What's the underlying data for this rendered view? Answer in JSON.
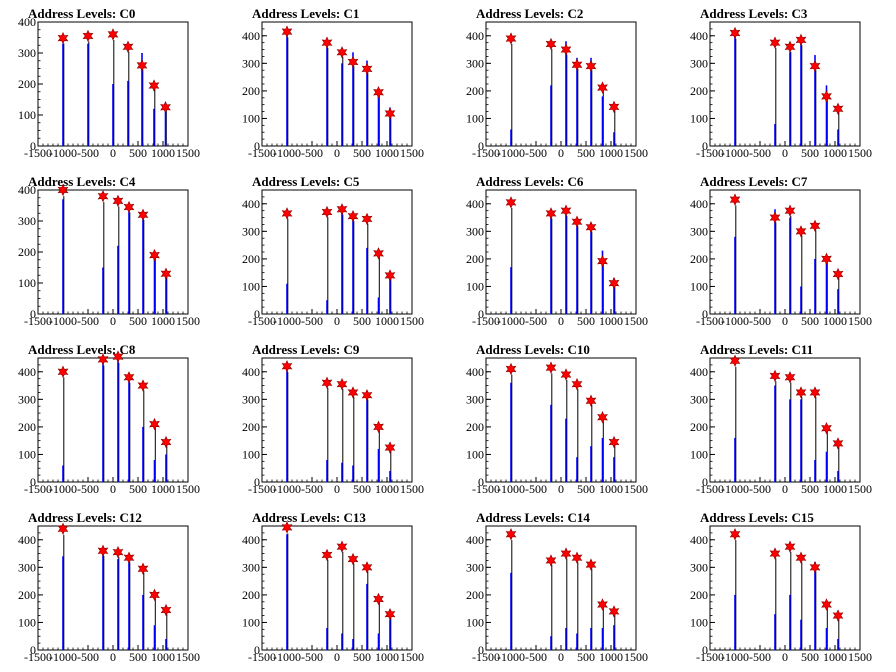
{
  "figure": {
    "background": "#ffffff"
  },
  "style": {
    "hist_color": "#0000ff",
    "stem_color": "#000000",
    "marker_fill": "#ff0000",
    "marker_stroke": "#8b0000",
    "axis_color": "#000000"
  },
  "chart_data": [
    {
      "type": "bar",
      "title": "Address Levels: C0",
      "xlim": [
        -1500,
        1500
      ],
      "ylim": [
        0,
        400
      ],
      "xticks": [
        "-1500",
        "-1000",
        "-500",
        "0",
        "500",
        "1000",
        "1500"
      ],
      "yticks": [
        "0",
        "100",
        "200",
        "300",
        "400"
      ],
      "x": [
        -1000,
        -500,
        0,
        300,
        580,
        820,
        1050
      ],
      "values": [
        330,
        330,
        200,
        210,
        300,
        120,
        140
      ],
      "peaks": [
        348,
        355,
        360,
        320,
        260,
        195,
        125
      ]
    },
    {
      "type": "bar",
      "title": "Address Levels: C1",
      "xlim": [
        -1500,
        1500
      ],
      "ylim": [
        0,
        450
      ],
      "xticks": [
        "-1500",
        "-1000",
        "-500",
        "0",
        "500",
        "1000",
        "1500"
      ],
      "yticks": [
        "0",
        "100",
        "200",
        "300",
        "400"
      ],
      "x": [
        -1000,
        -200,
        100,
        320,
        600,
        830,
        1060
      ],
      "values": [
        400,
        360,
        300,
        340,
        310,
        180,
        140
      ],
      "peaks": [
        415,
        375,
        340,
        305,
        280,
        195,
        118
      ]
    },
    {
      "type": "bar",
      "title": "Address Levels: C2",
      "xlim": [
        -1500,
        1500
      ],
      "ylim": [
        0,
        450
      ],
      "xticks": [
        "-1500",
        "-1000",
        "-500",
        "0",
        "500",
        "1000",
        "1500"
      ],
      "yticks": [
        "0",
        "100",
        "200",
        "300",
        "400"
      ],
      "x": [
        -1000,
        -200,
        100,
        320,
        600,
        830,
        1060
      ],
      "values": [
        60,
        220,
        380,
        320,
        320,
        180,
        50
      ],
      "peaks": [
        390,
        370,
        350,
        295,
        290,
        212,
        142
      ]
    },
    {
      "type": "bar",
      "title": "Address Levels: C3",
      "xlim": [
        -1500,
        1500
      ],
      "ylim": [
        0,
        450
      ],
      "xticks": [
        "-1500",
        "-1000",
        "-500",
        "0",
        "500",
        "1000",
        "1500"
      ],
      "yticks": [
        "0",
        "100",
        "200",
        "300",
        "400"
      ],
      "x": [
        -1000,
        -200,
        100,
        320,
        600,
        830,
        1060
      ],
      "values": [
        400,
        80,
        340,
        380,
        330,
        220,
        60
      ],
      "peaks": [
        410,
        375,
        360,
        385,
        290,
        180,
        135
      ]
    },
    {
      "type": "bar",
      "title": "Address Levels: C4",
      "xlim": [
        -1500,
        1500
      ],
      "ylim": [
        0,
        400
      ],
      "xticks": [
        "-1500",
        "-1000",
        "-500",
        "0",
        "500",
        "1000",
        "1500"
      ],
      "yticks": [
        "0",
        "100",
        "200",
        "300",
        "400"
      ],
      "x": [
        -1000,
        -200,
        100,
        320,
        600,
        830,
        1060
      ],
      "values": [
        370,
        150,
        220,
        330,
        320,
        200,
        120
      ],
      "peaks": [
        400,
        380,
        365,
        345,
        320,
        190,
        130
      ]
    },
    {
      "type": "bar",
      "title": "Address Levels: C5",
      "xlim": [
        -1500,
        1500
      ],
      "ylim": [
        0,
        450
      ],
      "xticks": [
        "-1500",
        "-1000",
        "-500",
        "0",
        "500",
        "1000",
        "1500"
      ],
      "yticks": [
        "0",
        "100",
        "200",
        "300",
        "400"
      ],
      "x": [
        -1000,
        -200,
        100,
        320,
        600,
        830,
        1060
      ],
      "values": [
        110,
        50,
        380,
        350,
        240,
        60,
        130
      ],
      "peaks": [
        365,
        370,
        380,
        355,
        345,
        220,
        140
      ]
    },
    {
      "type": "bar",
      "title": "Address Levels: C6",
      "xlim": [
        -1500,
        1500
      ],
      "ylim": [
        0,
        450
      ],
      "xticks": [
        "-1500",
        "-1000",
        "-500",
        "0",
        "500",
        "1000",
        "1500"
      ],
      "yticks": [
        "0",
        "100",
        "200",
        "300",
        "400"
      ],
      "x": [
        -1000,
        -200,
        100,
        320,
        600,
        830,
        1060
      ],
      "values": [
        170,
        350,
        380,
        330,
        310,
        230,
        130
      ],
      "peaks": [
        405,
        365,
        375,
        335,
        315,
        192,
        112
      ]
    },
    {
      "type": "bar",
      "title": "Address Levels: C7",
      "xlim": [
        -1500,
        1500
      ],
      "ylim": [
        0,
        450
      ],
      "xticks": [
        "-1500",
        "-1000",
        "-500",
        "0",
        "500",
        "1000",
        "1500"
      ],
      "yticks": [
        "0",
        "100",
        "200",
        "300",
        "400"
      ],
      "x": [
        -1000,
        -200,
        100,
        320,
        600,
        830,
        1060
      ],
      "values": [
        280,
        380,
        350,
        100,
        200,
        190,
        90
      ],
      "peaks": [
        415,
        350,
        375,
        300,
        320,
        200,
        145
      ]
    },
    {
      "type": "bar",
      "title": "Address Levels: C8",
      "xlim": [
        -1500,
        1500
      ],
      "ylim": [
        0,
        450
      ],
      "xticks": [
        "-1500",
        "-1000",
        "-500",
        "0",
        "500",
        "1000",
        "1500"
      ],
      "yticks": [
        "0",
        "100",
        "200",
        "300",
        "400"
      ],
      "x": [
        -1000,
        -200,
        100,
        320,
        600,
        830,
        1060
      ],
      "values": [
        60,
        440,
        470,
        380,
        200,
        80,
        100
      ],
      "peaks": [
        400,
        445,
        455,
        380,
        350,
        210,
        145
      ]
    },
    {
      "type": "bar",
      "title": "Address Levels: C9",
      "xlim": [
        -1500,
        1500
      ],
      "ylim": [
        0,
        450
      ],
      "xticks": [
        "-1500",
        "-1000",
        "-500",
        "0",
        "500",
        "1000",
        "1500"
      ],
      "yticks": [
        "0",
        "100",
        "200",
        "300",
        "400"
      ],
      "x": [
        -1000,
        -200,
        100,
        320,
        600,
        830,
        1060
      ],
      "values": [
        410,
        80,
        70,
        60,
        320,
        120,
        40
      ],
      "peaks": [
        420,
        360,
        355,
        325,
        315,
        200,
        125
      ]
    },
    {
      "type": "bar",
      "title": "Address Levels: C10",
      "xlim": [
        -1500,
        1500
      ],
      "ylim": [
        0,
        450
      ],
      "xticks": [
        "-1500",
        "-1000",
        "-500",
        "0",
        "500",
        "1000",
        "1500"
      ],
      "yticks": [
        "0",
        "100",
        "200",
        "300",
        "400"
      ],
      "x": [
        -1000,
        -200,
        100,
        320,
        600,
        830,
        1060
      ],
      "values": [
        360,
        280,
        230,
        90,
        130,
        160,
        90
      ],
      "peaks": [
        410,
        415,
        390,
        355,
        295,
        235,
        145
      ]
    },
    {
      "type": "bar",
      "title": "Address Levels: C11",
      "xlim": [
        -1500,
        1500
      ],
      "ylim": [
        0,
        450
      ],
      "xticks": [
        "-1500",
        "-1000",
        "-500",
        "0",
        "500",
        "1000",
        "1500"
      ],
      "yticks": [
        "0",
        "100",
        "200",
        "300",
        "400"
      ],
      "x": [
        -1000,
        -200,
        100,
        320,
        600,
        830,
        1060
      ],
      "values": [
        160,
        350,
        300,
        300,
        80,
        110,
        40
      ],
      "peaks": [
        440,
        385,
        380,
        325,
        325,
        195,
        140
      ]
    },
    {
      "type": "bar",
      "title": "Address Levels: C12",
      "xlim": [
        -1500,
        1500
      ],
      "ylim": [
        0,
        450
      ],
      "xticks": [
        "-1500",
        "-1000",
        "-500",
        "0",
        "500",
        "1000",
        "1500"
      ],
      "yticks": [
        "0",
        "100",
        "200",
        "300",
        "400"
      ],
      "x": [
        -1000,
        -200,
        100,
        320,
        600,
        830,
        1060
      ],
      "values": [
        340,
        350,
        330,
        320,
        200,
        90,
        40
      ],
      "peaks": [
        440,
        360,
        355,
        335,
        295,
        200,
        145
      ]
    },
    {
      "type": "bar",
      "title": "Address Levels: C13",
      "xlim": [
        -1500,
        1500
      ],
      "ylim": [
        0,
        450
      ],
      "xticks": [
        "-1500",
        "-1000",
        "-500",
        "0",
        "500",
        "1000",
        "1500"
      ],
      "yticks": [
        "0",
        "100",
        "200",
        "300",
        "400"
      ],
      "x": [
        -1000,
        -200,
        100,
        320,
        600,
        830,
        1060
      ],
      "values": [
        420,
        80,
        60,
        40,
        240,
        60,
        110
      ],
      "peaks": [
        445,
        345,
        375,
        330,
        300,
        185,
        130
      ]
    },
    {
      "type": "bar",
      "title": "Address Levels: C14",
      "xlim": [
        -1500,
        1500
      ],
      "ylim": [
        0,
        450
      ],
      "xticks": [
        "-1500",
        "-1000",
        "-500",
        "0",
        "500",
        "1000",
        "1500"
      ],
      "yticks": [
        "0",
        "100",
        "200",
        "300",
        "400"
      ],
      "x": [
        -1000,
        -200,
        100,
        320,
        600,
        830,
        1060
      ],
      "values": [
        280,
        50,
        80,
        60,
        80,
        80,
        90
      ],
      "peaks": [
        420,
        325,
        350,
        335,
        310,
        165,
        140
      ]
    },
    {
      "type": "bar",
      "title": "Address Levels: C15",
      "xlim": [
        -1500,
        1500
      ],
      "ylim": [
        0,
        450
      ],
      "xticks": [
        "-1500",
        "-1000",
        "-500",
        "0",
        "500",
        "1000",
        "1500"
      ],
      "yticks": [
        "0",
        "100",
        "200",
        "300",
        "400"
      ],
      "x": [
        -1000,
        -200,
        100,
        320,
        600,
        830,
        1060
      ],
      "values": [
        200,
        130,
        200,
        110,
        320,
        80,
        40
      ],
      "peaks": [
        420,
        350,
        375,
        335,
        300,
        165,
        125
      ]
    }
  ]
}
